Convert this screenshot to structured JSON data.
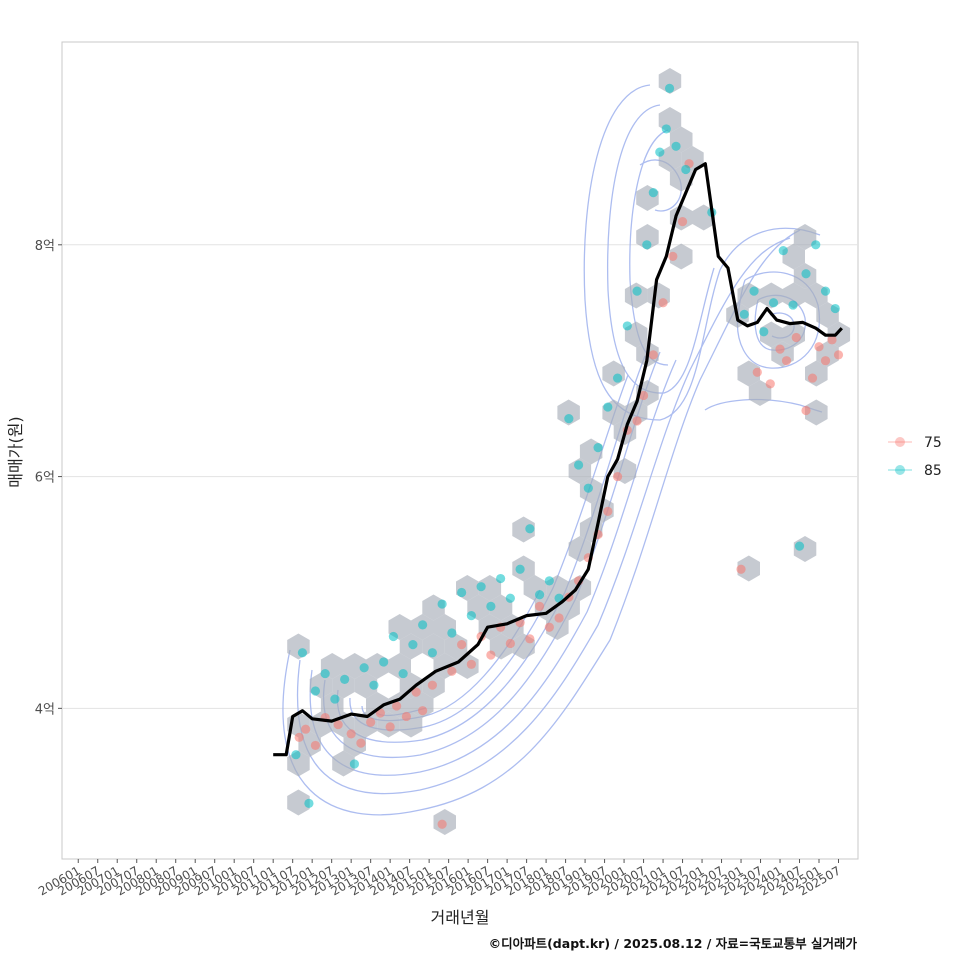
{
  "chart_data": {
    "type": "scatter",
    "title": "",
    "xlabel": "거래년월",
    "ylabel": "매매가(원)",
    "caption": "©디아파트(dapt.kr) / 2025.08.12 / 자료=국토교통부 실거래가",
    "x_ticks": [
      "200601",
      "200607",
      "200701",
      "200707",
      "200801",
      "200807",
      "200901",
      "200907",
      "201001",
      "201007",
      "201101",
      "201107",
      "201201",
      "201207",
      "201301",
      "201307",
      "201401",
      "201407",
      "201501",
      "201507",
      "201601",
      "201607",
      "201701",
      "201707",
      "201801",
      "201807",
      "201901",
      "201907",
      "202001",
      "202007",
      "202101",
      "202107",
      "202201",
      "202207",
      "202301",
      "202307",
      "202401",
      "202407",
      "202501",
      "202507"
    ],
    "y_ticks": [
      {
        "value": 400000000,
        "label": "4억"
      },
      {
        "value": 600000000,
        "label": "6억"
      },
      {
        "value": 800000000,
        "label": "8억"
      }
    ],
    "xlim": [
      "2005-08",
      "2026-01"
    ],
    "ylim": [
      270000000,
      975000000
    ],
    "grid": "horizontal",
    "legend_position": "right",
    "legend": [
      {
        "name": "75",
        "color": "#F8766D"
      },
      {
        "name": "85",
        "color": "#00BFC4"
      }
    ],
    "series": [
      {
        "name": "75",
        "color": "#F8766D",
        "points": [
          {
            "x": "2011-09",
            "y": 375000000
          },
          {
            "x": "2011-11",
            "y": 382000000
          },
          {
            "x": "2012-02",
            "y": 368000000
          },
          {
            "x": "2012-05",
            "y": 392000000
          },
          {
            "x": "2012-09",
            "y": 386000000
          },
          {
            "x": "2013-01",
            "y": 378000000
          },
          {
            "x": "2013-04",
            "y": 370000000
          },
          {
            "x": "2013-07",
            "y": 388000000
          },
          {
            "x": "2013-10",
            "y": 396000000
          },
          {
            "x": "2014-01",
            "y": 384000000
          },
          {
            "x": "2014-03",
            "y": 402000000
          },
          {
            "x": "2014-06",
            "y": 393000000
          },
          {
            "x": "2014-09",
            "y": 414000000
          },
          {
            "x": "2014-11",
            "y": 398000000
          },
          {
            "x": "2015-02",
            "y": 420000000
          },
          {
            "x": "2015-05",
            "y": 300000000
          },
          {
            "x": "2015-08",
            "y": 432000000
          },
          {
            "x": "2015-11",
            "y": 455000000
          },
          {
            "x": "2016-02",
            "y": 438000000
          },
          {
            "x": "2016-05",
            "y": 462000000
          },
          {
            "x": "2016-08",
            "y": 446000000
          },
          {
            "x": "2016-11",
            "y": 470000000
          },
          {
            "x": "2017-02",
            "y": 456000000
          },
          {
            "x": "2017-05",
            "y": 474000000
          },
          {
            "x": "2017-08",
            "y": 460000000
          },
          {
            "x": "2017-11",
            "y": 488000000
          },
          {
            "x": "2018-02",
            "y": 470000000
          },
          {
            "x": "2018-05",
            "y": 478000000
          },
          {
            "x": "2018-08",
            "y": 496000000
          },
          {
            "x": "2018-11",
            "y": 510000000
          },
          {
            "x": "2019-02",
            "y": 530000000
          },
          {
            "x": "2019-05",
            "y": 550000000
          },
          {
            "x": "2019-08",
            "y": 570000000
          },
          {
            "x": "2019-11",
            "y": 600000000
          },
          {
            "x": "2020-02",
            "y": 640000000
          },
          {
            "x": "2020-05",
            "y": 648000000
          },
          {
            "x": "2020-07",
            "y": 670000000
          },
          {
            "x": "2020-10",
            "y": 705000000
          },
          {
            "x": "2021-01",
            "y": 750000000
          },
          {
            "x": "2021-04",
            "y": 790000000
          },
          {
            "x": "2021-07",
            "y": 820000000
          },
          {
            "x": "2021-09",
            "y": 870000000
          },
          {
            "x": "2023-01",
            "y": 520000000
          },
          {
            "x": "2023-06",
            "y": 690000000
          },
          {
            "x": "2023-10",
            "y": 680000000
          },
          {
            "x": "2024-01",
            "y": 710000000
          },
          {
            "x": "2024-03",
            "y": 700000000
          },
          {
            "x": "2024-06",
            "y": 720000000
          },
          {
            "x": "2024-09",
            "y": 657000000
          },
          {
            "x": "2024-11",
            "y": 685000000
          },
          {
            "x": "2025-01",
            "y": 712000000
          },
          {
            "x": "2025-03",
            "y": 700000000
          },
          {
            "x": "2025-05",
            "y": 718000000
          },
          {
            "x": "2025-07",
            "y": 705000000
          }
        ]
      },
      {
        "name": "85",
        "color": "#00BFC4",
        "points": [
          {
            "x": "2011-08",
            "y": 360000000
          },
          {
            "x": "2011-10",
            "y": 448000000
          },
          {
            "x": "2011-12",
            "y": 318000000
          },
          {
            "x": "2012-02",
            "y": 415000000
          },
          {
            "x": "2012-05",
            "y": 430000000
          },
          {
            "x": "2012-08",
            "y": 408000000
          },
          {
            "x": "2012-11",
            "y": 425000000
          },
          {
            "x": "2013-02",
            "y": 352000000
          },
          {
            "x": "2013-05",
            "y": 435000000
          },
          {
            "x": "2013-08",
            "y": 420000000
          },
          {
            "x": "2013-11",
            "y": 440000000
          },
          {
            "x": "2014-02",
            "y": 462000000
          },
          {
            "x": "2014-05",
            "y": 430000000
          },
          {
            "x": "2014-08",
            "y": 455000000
          },
          {
            "x": "2014-11",
            "y": 472000000
          },
          {
            "x": "2015-02",
            "y": 448000000
          },
          {
            "x": "2015-05",
            "y": 490000000
          },
          {
            "x": "2015-08",
            "y": 465000000
          },
          {
            "x": "2015-11",
            "y": 500000000
          },
          {
            "x": "2016-02",
            "y": 480000000
          },
          {
            "x": "2016-05",
            "y": 505000000
          },
          {
            "x": "2016-08",
            "y": 488000000
          },
          {
            "x": "2016-11",
            "y": 512000000
          },
          {
            "x": "2017-02",
            "y": 495000000
          },
          {
            "x": "2017-05",
            "y": 520000000
          },
          {
            "x": "2017-08",
            "y": 555000000
          },
          {
            "x": "2017-11",
            "y": 498000000
          },
          {
            "x": "2018-02",
            "y": 510000000
          },
          {
            "x": "2018-05",
            "y": 495000000
          },
          {
            "x": "2018-08",
            "y": 650000000
          },
          {
            "x": "2018-11",
            "y": 610000000
          },
          {
            "x": "2019-02",
            "y": 590000000
          },
          {
            "x": "2019-05",
            "y": 625000000
          },
          {
            "x": "2019-08",
            "y": 660000000
          },
          {
            "x": "2019-11",
            "y": 685000000
          },
          {
            "x": "2020-02",
            "y": 730000000
          },
          {
            "x": "2020-05",
            "y": 760000000
          },
          {
            "x": "2020-08",
            "y": 800000000
          },
          {
            "x": "2020-10",
            "y": 845000000
          },
          {
            "x": "2020-12",
            "y": 880000000
          },
          {
            "x": "2021-02",
            "y": 900000000
          },
          {
            "x": "2021-03",
            "y": 935000000
          },
          {
            "x": "2021-05",
            "y": 885000000
          },
          {
            "x": "2021-08",
            "y": 865000000
          },
          {
            "x": "2022-04",
            "y": 828000000
          },
          {
            "x": "2023-02",
            "y": 740000000
          },
          {
            "x": "2023-05",
            "y": 760000000
          },
          {
            "x": "2023-08",
            "y": 725000000
          },
          {
            "x": "2023-11",
            "y": 750000000
          },
          {
            "x": "2024-02",
            "y": 795000000
          },
          {
            "x": "2024-05",
            "y": 748000000
          },
          {
            "x": "2024-07",
            "y": 540000000
          },
          {
            "x": "2024-09",
            "y": 775000000
          },
          {
            "x": "2024-12",
            "y": 800000000
          },
          {
            "x": "2025-03",
            "y": 760000000
          },
          {
            "x": "2025-06",
            "y": 745000000
          }
        ]
      }
    ],
    "trend_line": {
      "color": "#000000",
      "points": [
        {
          "x": "2011-01",
          "y": 360000000
        },
        {
          "x": "2011-05",
          "y": 360000000
        },
        {
          "x": "2011-07",
          "y": 393000000
        },
        {
          "x": "2011-10",
          "y": 398000000
        },
        {
          "x": "2012-01",
          "y": 391000000
        },
        {
          "x": "2012-07",
          "y": 389000000
        },
        {
          "x": "2013-01",
          "y": 395000000
        },
        {
          "x": "2013-06",
          "y": 393000000
        },
        {
          "x": "2013-11",
          "y": 403000000
        },
        {
          "x": "2014-04",
          "y": 408000000
        },
        {
          "x": "2014-09",
          "y": 420000000
        },
        {
          "x": "2015-03",
          "y": 432000000
        },
        {
          "x": "2015-10",
          "y": 440000000
        },
        {
          "x": "2016-04",
          "y": 455000000
        },
        {
          "x": "2016-07",
          "y": 470000000
        },
        {
          "x": "2017-01",
          "y": 473000000
        },
        {
          "x": "2017-07",
          "y": 480000000
        },
        {
          "x": "2018-01",
          "y": 482000000
        },
        {
          "x": "2018-06",
          "y": 492000000
        },
        {
          "x": "2018-10",
          "y": 502000000
        },
        {
          "x": "2019-02",
          "y": 520000000
        },
        {
          "x": "2019-05",
          "y": 560000000
        },
        {
          "x": "2019-08",
          "y": 600000000
        },
        {
          "x": "2019-11",
          "y": 615000000
        },
        {
          "x": "2020-02",
          "y": 645000000
        },
        {
          "x": "2020-05",
          "y": 665000000
        },
        {
          "x": "2020-08",
          "y": 700000000
        },
        {
          "x": "2020-11",
          "y": 770000000
        },
        {
          "x": "2021-02",
          "y": 790000000
        },
        {
          "x": "2021-05",
          "y": 825000000
        },
        {
          "x": "2021-08",
          "y": 845000000
        },
        {
          "x": "2021-11",
          "y": 865000000
        },
        {
          "x": "2022-02",
          "y": 870000000
        },
        {
          "x": "2022-04",
          "y": 830000000
        },
        {
          "x": "2022-06",
          "y": 790000000
        },
        {
          "x": "2022-09",
          "y": 780000000
        },
        {
          "x": "2022-12",
          "y": 735000000
        },
        {
          "x": "2023-03",
          "y": 730000000
        },
        {
          "x": "2023-06",
          "y": 733000000
        },
        {
          "x": "2023-09",
          "y": 745000000
        },
        {
          "x": "2023-12",
          "y": 735000000
        },
        {
          "x": "2024-04",
          "y": 732000000
        },
        {
          "x": "2024-08",
          "y": 733000000
        },
        {
          "x": "2024-12",
          "y": 728000000
        },
        {
          "x": "2025-03",
          "y": 722000000
        },
        {
          "x": "2025-06",
          "y": 722000000
        },
        {
          "x": "2025-08",
          "y": 728000000
        }
      ]
    }
  }
}
